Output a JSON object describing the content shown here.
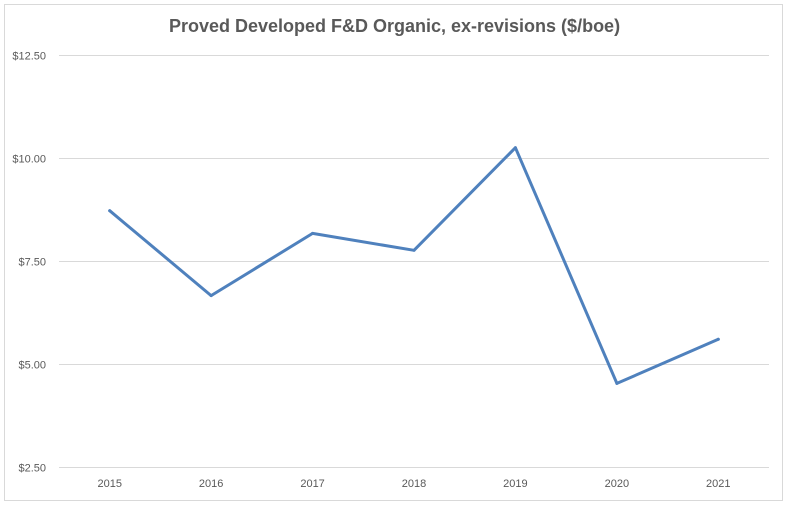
{
  "chart_data": {
    "type": "line",
    "title": "Proved Developed F&D Organic, ex-revisions ($/boe)",
    "xlabel": "",
    "ylabel": "",
    "categories": [
      "2015",
      "2016",
      "2017",
      "2018",
      "2019",
      "2020",
      "2021"
    ],
    "series": [
      {
        "values": [
          8.72,
          6.66,
          8.17,
          7.76,
          10.25,
          4.53,
          5.6
        ],
        "color": "#4f81bd"
      }
    ],
    "ylim": [
      2.5,
      12.5
    ],
    "yticks": [
      2.5,
      5.0,
      7.5,
      10.0,
      12.5
    ],
    "ytick_labels": [
      "$2.50",
      "$5.00",
      "$7.50",
      "$10.00",
      "$12.50"
    ],
    "grid": true,
    "legend": "none",
    "gridline_color": "#d9d9d9"
  }
}
